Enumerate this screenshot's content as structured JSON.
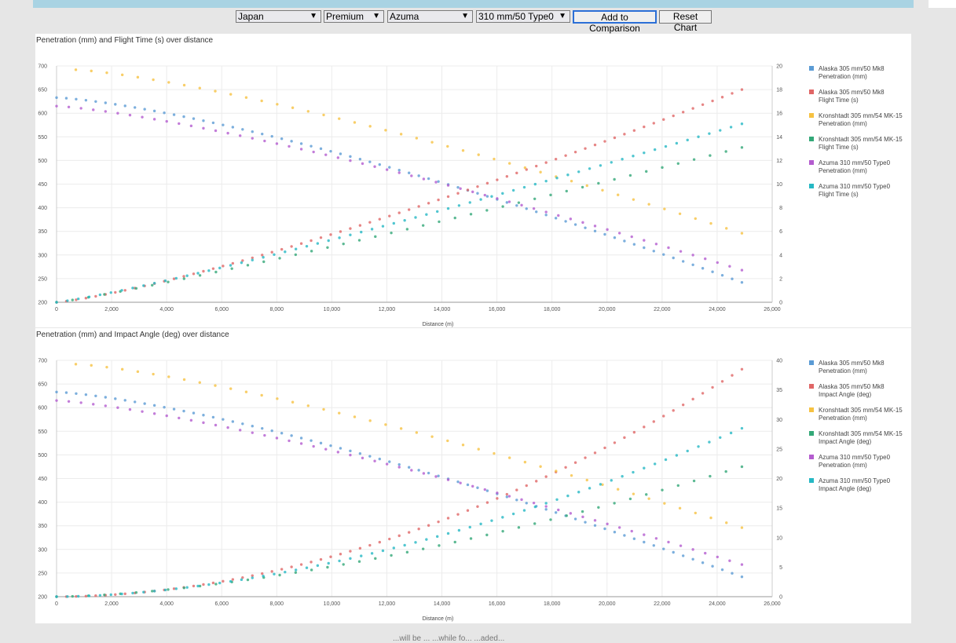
{
  "controls": {
    "nation": "Japan",
    "type": "Premium",
    "ship": "Azuma",
    "gun": "310 mm/50 Type0",
    "add_button": "Add to Comparison",
    "reset_button": "Reset Chart"
  },
  "footnote": "...will be ... ...while fo... ...aded...",
  "colors": {
    "alaska_pen": "#5b9bd5",
    "alaska_sec": "#e06666",
    "kron_pen": "#f6c242",
    "kron_sec": "#33a878",
    "azuma_pen": "#b45ccf",
    "azuma_sec": "#26b8c4"
  },
  "chart_data": [
    {
      "type": "scatter",
      "title": "Penetration (mm) and Flight Time (s) over distance",
      "xlabel": "Distance (m)",
      "xlim": [
        0,
        26000
      ],
      "ylim_left": [
        200,
        700
      ],
      "ylim_right": [
        0,
        20
      ],
      "x_ticks": [
        "0",
        "2,000",
        "4,000",
        "6,000",
        "8,000",
        "10,000",
        "12,000",
        "14,000",
        "16,000",
        "18,000",
        "20,000",
        "22,000",
        "24,000",
        "26,000"
      ],
      "y_ticks_left": [
        "200",
        "250",
        "300",
        "350",
        "400",
        "450",
        "500",
        "550",
        "600",
        "650",
        "700"
      ],
      "y_ticks_right": [
        "0",
        "2",
        "4",
        "6",
        "8",
        "10",
        "12",
        "14",
        "16",
        "18",
        "20"
      ],
      "grid": true,
      "legend_position": "right",
      "series": [
        {
          "name": "Alaska 305 mm/50 Mk8 Penetration (mm)",
          "axis": "left",
          "color": "#5b9bd5",
          "x0": 0,
          "x1": 24900,
          "n": 71,
          "y0": 633,
          "y1": 242,
          "curve": 1.35
        },
        {
          "name": "Alaska 305 mm/50 Mk8 Flight Time (s)",
          "axis": "right",
          "color": "#e06666",
          "x0": 0,
          "x1": 24900,
          "n": 71,
          "y0": 0,
          "y1": 18,
          "curve": 1.25
        },
        {
          "name": "Kronshtadt 305 mm/54 MK-15 Penetration (mm)",
          "axis": "left",
          "color": "#f6c242",
          "x0": 700,
          "x1": 24900,
          "n": 44,
          "y0": 692,
          "y1": 346,
          "curve": 1.3
        },
        {
          "name": "Kronshtadt 305 mm/54 MK-15 Flight Time (s)",
          "axis": "right",
          "color": "#33a878",
          "x0": 0,
          "x1": 24900,
          "n": 44,
          "y0": 0,
          "y1": 13.1,
          "curve": 1.12
        },
        {
          "name": "Azuma 310 mm/50 Type0 Penetration (mm)",
          "axis": "left",
          "color": "#b45ccf",
          "x0": 0,
          "x1": 24900,
          "n": 57,
          "y0": 615,
          "y1": 268,
          "curve": 1.3
        },
        {
          "name": "Azuma 310 mm/50 Type0 Flight Time (s)",
          "axis": "right",
          "color": "#26b8c4",
          "x0": 0,
          "x1": 24900,
          "n": 64,
          "y0": 0,
          "y1": 15.1,
          "curve": 1.15
        }
      ]
    },
    {
      "type": "scatter",
      "title": "Penetration (mm) and Impact Angle (deg) over distance",
      "xlabel": "Distance (m)",
      "xlim": [
        0,
        26000
      ],
      "ylim_left": [
        200,
        700
      ],
      "ylim_right": [
        0,
        40
      ],
      "x_ticks": [
        "0",
        "2,000",
        "4,000",
        "6,000",
        "8,000",
        "10,000",
        "12,000",
        "14,000",
        "16,000",
        "18,000",
        "20,000",
        "22,000",
        "24,000",
        "26,000"
      ],
      "y_ticks_left": [
        "200",
        "250",
        "300",
        "350",
        "400",
        "450",
        "500",
        "550",
        "600",
        "650",
        "700"
      ],
      "y_ticks_right": [
        "0",
        "5",
        "10",
        "15",
        "20",
        "25",
        "30",
        "35",
        "40"
      ],
      "grid": true,
      "legend_position": "right",
      "series": [
        {
          "name": "Alaska 305 mm/50 Mk8 Penetration (mm)",
          "axis": "left",
          "color": "#5b9bd5",
          "x0": 0,
          "x1": 24900,
          "n": 71,
          "y0": 633,
          "y1": 242,
          "curve": 1.35
        },
        {
          "name": "Alaska 305 mm/50 Mk8 Impact Angle (deg)",
          "axis": "right",
          "color": "#e06666",
          "x0": 0,
          "x1": 24900,
          "n": 71,
          "y0": 0,
          "y1": 38.5,
          "curve": 1.9
        },
        {
          "name": "Kronshtadt 305 mm/54 MK-15 Penetration (mm)",
          "axis": "left",
          "color": "#f6c242",
          "x0": 700,
          "x1": 24900,
          "n": 44,
          "y0": 692,
          "y1": 346,
          "curve": 1.3
        },
        {
          "name": "Kronshtadt 305 mm/54 MK-15 Impact Angle (deg)",
          "axis": "right",
          "color": "#33a878",
          "x0": 0,
          "x1": 24900,
          "n": 44,
          "y0": 0,
          "y1": 22,
          "curve": 1.6
        },
        {
          "name": "Azuma 310 mm/50 Type0 Penetration (mm)",
          "axis": "left",
          "color": "#b45ccf",
          "x0": 0,
          "x1": 24900,
          "n": 57,
          "y0": 615,
          "y1": 268,
          "curve": 1.3
        },
        {
          "name": "Azuma 310 mm/50 Type0 Impact Angle (deg)",
          "axis": "right",
          "color": "#26b8c4",
          "x0": 0,
          "x1": 24900,
          "n": 64,
          "y0": 0,
          "y1": 28.5,
          "curve": 1.75
        }
      ]
    }
  ]
}
